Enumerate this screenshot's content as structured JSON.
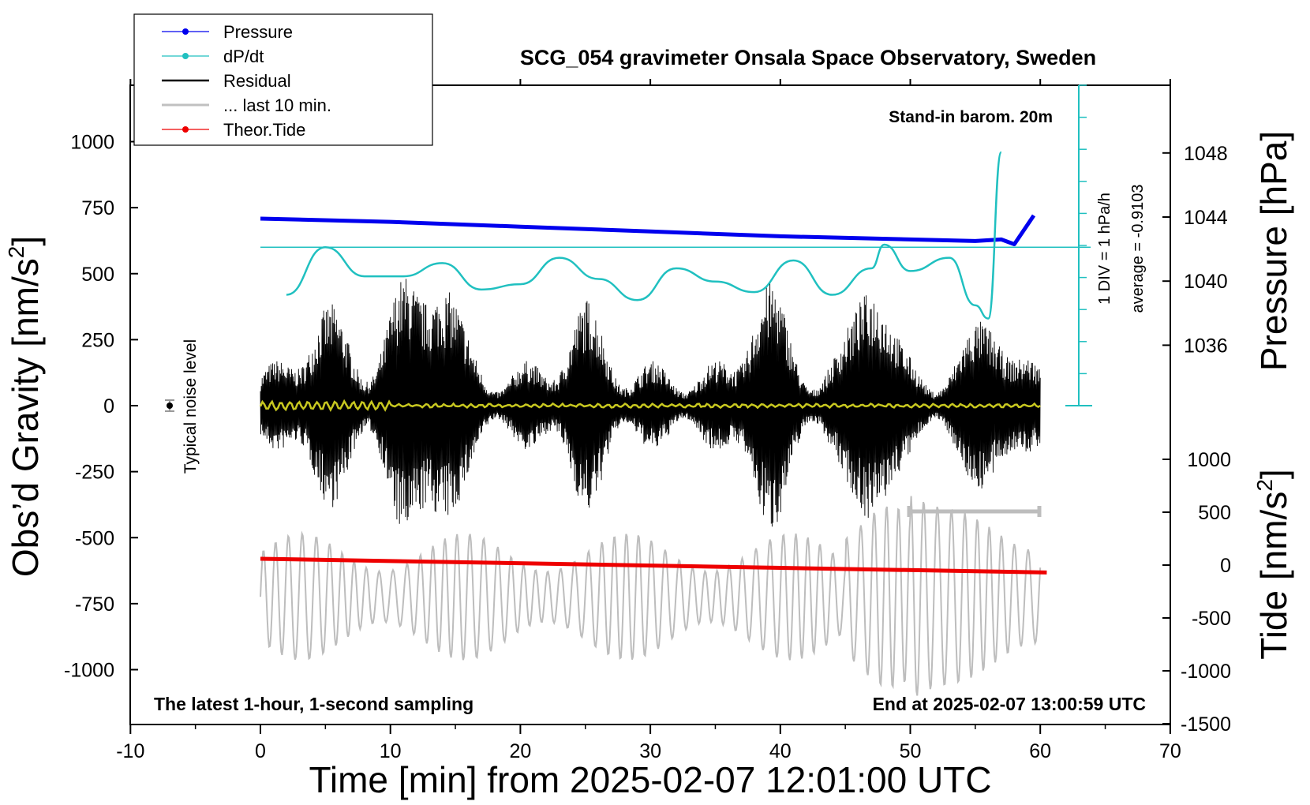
{
  "chart_data": {
    "type": "line",
    "title": "SCG_054 gravimeter Onsala Space Observatory, Sweden",
    "xlabel": "Time [min] from 2025-02-07 12:01:00 UTC",
    "xlim": [
      -10,
      70
    ],
    "xticks": [
      "-10",
      "0",
      "10",
      "20",
      "30",
      "40",
      "50",
      "60",
      "70"
    ],
    "left_axis": {
      "label_main": "Obs’d Gravity [nm/s",
      "label_sup": "2",
      "label_end": "]",
      "ylim": [
        -1200,
        1200
      ],
      "ticks": [
        "1000",
        "750",
        "500",
        "250",
        "0",
        "-250",
        "-500",
        "-750",
        "-1000"
      ]
    },
    "right_axis_pressure": {
      "label": "Pressure [hPa]",
      "ticks": [
        "1048",
        "1044",
        "1040",
        "1036"
      ]
    },
    "right_axis_tide": {
      "label_main": "Tide [nm/s",
      "label_sup": "2",
      "label_end": "]",
      "ticks": [
        "1000",
        "500",
        "0",
        "-500",
        "-1000",
        "-1500"
      ]
    },
    "legend": {
      "position": "top-left",
      "entries": [
        {
          "label": "Pressure",
          "color": "#0000ee"
        },
        {
          "label": "dP/dt",
          "color": "#20c0c0"
        },
        {
          "label": "Residual",
          "color": "#000000"
        },
        {
          "label": "... last 10 min.",
          "color": "#c0c0c0"
        },
        {
          "label": "Theor.Tide",
          "color": "#ee0000"
        }
      ]
    },
    "annotations": {
      "barometer": "Stand-in barom. 20m",
      "div_label": "1 DIV = 1 hPa/h",
      "average_label": "average = -0.9103",
      "noise_label": "Typical noise level",
      "footer_left": "The latest 1-hour, 1-second sampling",
      "footer_right": "End at 2025-02-07 13:00:59 UTC"
    },
    "series": [
      {
        "name": "Pressure",
        "unit": "hPa",
        "x": [
          0,
          10,
          20,
          30,
          40,
          50,
          55,
          57,
          58,
          59.5
        ],
        "values": [
          1043.9,
          1043.7,
          1043.4,
          1043.1,
          1042.8,
          1042.6,
          1042.5,
          1042.6,
          1042.3,
          1044.1
        ]
      },
      {
        "name": "dP/dt",
        "unit": "hPa/h (gravity-scaled)",
        "x": [
          2,
          5,
          8,
          11,
          14,
          17,
          20,
          23,
          26,
          29,
          32,
          35,
          38,
          41,
          44,
          47,
          48,
          50,
          53,
          55,
          56,
          57
        ],
        "values": [
          420,
          600,
          490,
          490,
          540,
          440,
          460,
          560,
          480,
          400,
          520,
          470,
          430,
          550,
          420,
          520,
          610,
          510,
          560,
          380,
          330,
          960
        ]
      },
      {
        "name": "Residual",
        "unit": "nm/s2",
        "x": [
          0,
          60
        ],
        "envelope": [
          -500,
          500
        ]
      },
      {
        "name": "Theor.Tide",
        "unit": "nm/s2",
        "x": [
          0,
          60.5
        ],
        "values": [
          60,
          -70
        ]
      }
    ]
  }
}
